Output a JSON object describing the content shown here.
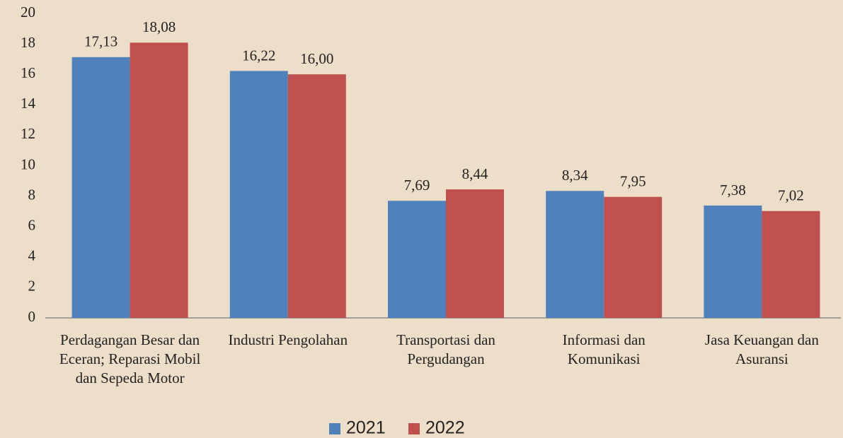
{
  "chart_data": {
    "type": "bar",
    "categories": [
      "Perdagangan Besar dan Eceran; Reparasi Mobil dan Sepeda Motor",
      "Industri Pengolahan",
      "Transportasi dan Pergudangan",
      "Informasi dan Komunikasi",
      "Jasa Keuangan dan Asuransi"
    ],
    "series": [
      {
        "name": "2021",
        "color": "#4f81bd",
        "values": [
          17.13,
          16.22,
          7.69,
          8.34,
          7.38
        ],
        "value_labels": [
          "17,13",
          "16,22",
          "7,69",
          "8,34",
          "7,38"
        ]
      },
      {
        "name": "2022",
        "color": "#c0504d",
        "values": [
          18.08,
          16.0,
          8.44,
          7.95,
          7.02
        ],
        "value_labels": [
          "18,08",
          "16,00",
          "8,44",
          "7,95",
          "7,02"
        ]
      }
    ],
    "ylim": [
      0,
      20
    ],
    "yticks": [
      0,
      2,
      4,
      6,
      8,
      10,
      12,
      14,
      16,
      18,
      20
    ],
    "grid": false,
    "legend": "bottom"
  }
}
